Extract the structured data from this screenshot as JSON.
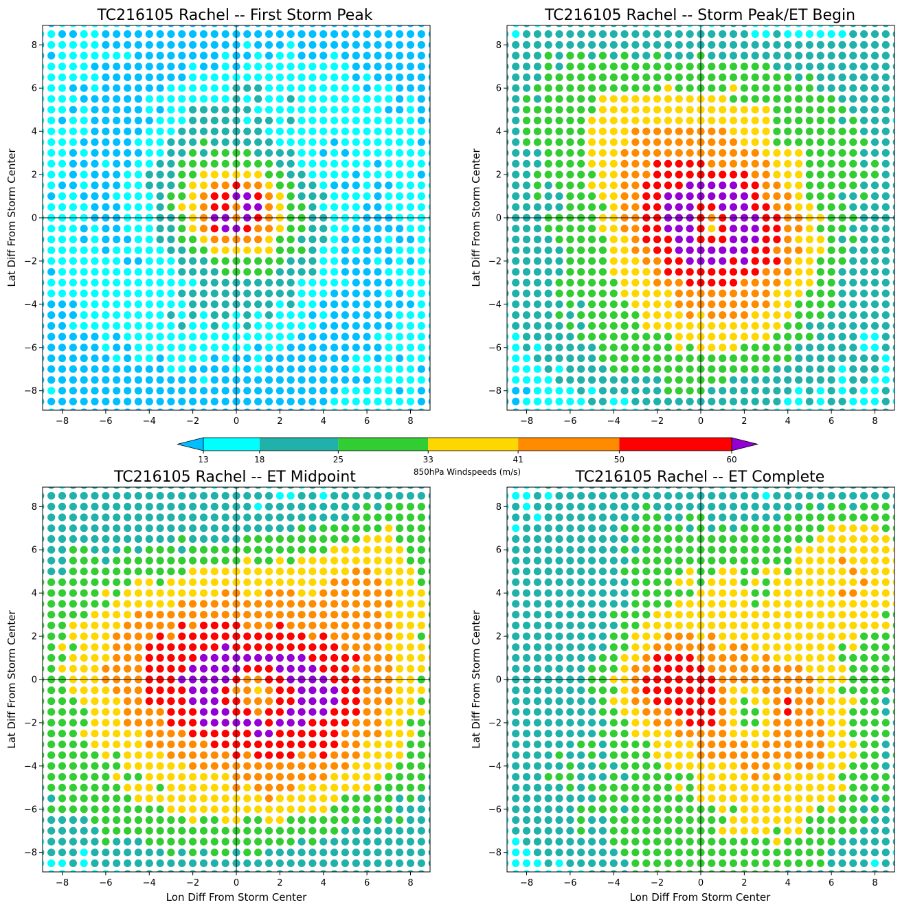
{
  "chart_data": {
    "type": "scatter",
    "xlabel": "Lon Diff From Storm Center",
    "ylabel": "Lat Diff From Storm Center",
    "xlim": [
      -8.9,
      8.9
    ],
    "ylim": [
      -8.9,
      8.9
    ],
    "ticks": [
      -8,
      -6,
      -4,
      -2,
      0,
      2,
      4,
      6,
      8
    ],
    "grid_spacing": 0.5,
    "crosshair": true,
    "colorbar": {
      "label": "850hPa Windspeeds (m/s)",
      "boundaries": [
        13,
        18,
        25,
        33,
        41,
        50,
        60
      ],
      "bin_colors": [
        "#00ffff",
        "#20b2aa",
        "#32cd32",
        "#ffd700",
        "#ff8c00",
        "#ff0000"
      ],
      "under_color": "#00bfff",
      "over_color": "#9400d3",
      "extend": "both"
    },
    "panels": [
      {
        "title": "TC216105 Rachel -- First Storm Peak",
        "core": {
          "center": [
            0.0,
            0.3
          ],
          "peak_wind": 68,
          "radius_max": 0.7,
          "decay_scale": 1.6,
          "aspect": [
            1.0,
            1.0
          ]
        },
        "extras": [],
        "background_wind": 12
      },
      {
        "title": "TC216105 Rachel -- Storm Peak/ET Begin",
        "core": {
          "center": [
            0.5,
            -0.3
          ],
          "peak_wind": 70,
          "radius_max": 1.2,
          "decay_scale": 3.6,
          "aspect": [
            1.1,
            1.15
          ]
        },
        "extras": [
          {
            "center": [
              -5.0,
              5.0
            ],
            "wind": 12,
            "radius": 2.5
          },
          {
            "center": [
              8.5,
              8.5
            ],
            "wind": 10,
            "radius": 1.5
          }
        ],
        "background_wind": 11
      },
      {
        "title": "TC216105 Rachel -- ET Midpoint",
        "core": {
          "center": [
            1.0,
            -0.6
          ],
          "peak_wind": 66,
          "radius_max": 1.6,
          "decay_scale": 4.4,
          "aspect": [
            1.45,
            1.0
          ]
        },
        "extras": [
          {
            "center": [
              6.0,
              3.5
            ],
            "wind": 10,
            "radius": 2.0
          },
          {
            "center": [
              -5.5,
              2.0
            ],
            "wind": 8,
            "radius": 2.5
          },
          {
            "center": [
              7.5,
              7.5
            ],
            "wind": 9,
            "radius": 1.5
          }
        ],
        "background_wind": 11
      },
      {
        "title": "TC216105 Rachel -- ET Complete",
        "core": {
          "center": [
            2.2,
            -1.5
          ],
          "peak_wind": 48,
          "radius_max": 1.5,
          "decay_scale": 4.8,
          "aspect": [
            1.25,
            1.25
          ]
        },
        "extras": [
          {
            "center": [
              7.5,
              5.5
            ],
            "wind": 16,
            "radius": 2.2
          },
          {
            "center": [
              -1.8,
              0.0
            ],
            "wind": 20,
            "radius": 1.4
          },
          {
            "center": [
              -2.0,
              6.5
            ],
            "wind": 8,
            "radius": 2.0
          }
        ],
        "background_wind": 11
      }
    ]
  }
}
